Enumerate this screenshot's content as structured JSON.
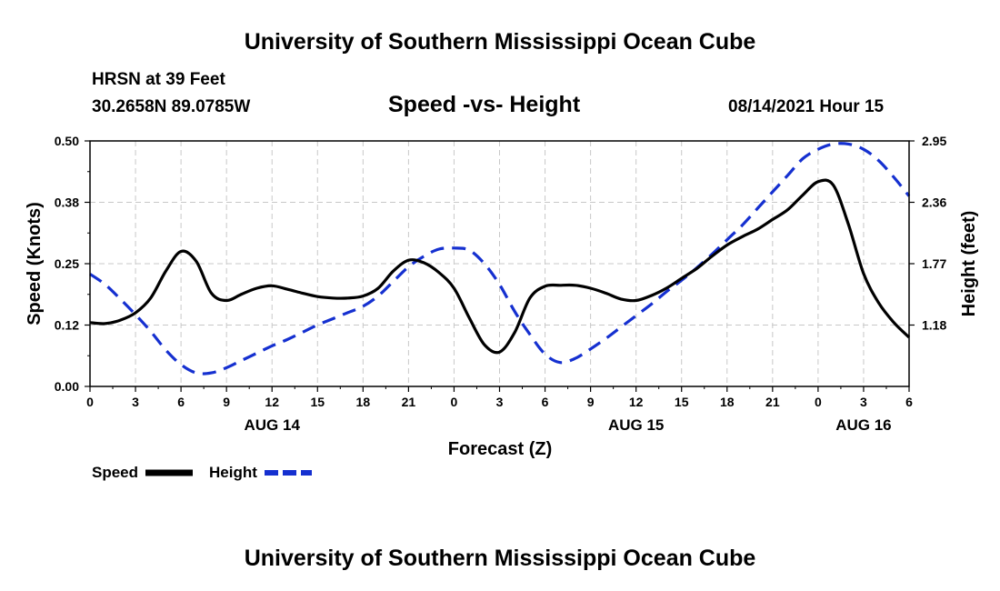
{
  "page": {
    "title_top": "University of Southern Mississippi Ocean Cube",
    "title_bottom": "University of Southern Mississippi Ocean Cube",
    "station": "HRSN at 39 Feet",
    "coords": "30.2658N  89.0785W",
    "subtitle": "Speed -vs- Height",
    "datetime": "08/14/2021 Hour 15"
  },
  "chart_data": {
    "type": "line",
    "title": "Speed -vs- Height",
    "xlabel": "Forecast (Z)",
    "ylabel_left": "Speed (Knots)",
    "ylabel_right": "Height (feet)",
    "x_range_hours": [
      0,
      54
    ],
    "x_ticks": [
      "0",
      "3",
      "6",
      "9",
      "12",
      "15",
      "18",
      "21",
      "0",
      "3",
      "6",
      "9",
      "12",
      "15",
      "18",
      "21",
      "0",
      "3",
      "6"
    ],
    "day_labels": [
      {
        "label": "AUG 14",
        "hour": 12
      },
      {
        "label": "AUG 15",
        "hour": 36
      },
      {
        "label": "AUG 16",
        "hour": 51
      }
    ],
    "y_left": {
      "ticks": [
        "0.00",
        "0.12",
        "0.25",
        "0.38",
        "0.50"
      ],
      "range": [
        0,
        0.5
      ]
    },
    "y_right": {
      "ticks": [
        "1.18",
        "1.77",
        "2.36",
        "2.95"
      ],
      "range": [
        0.59,
        2.95
      ]
    },
    "grid": true,
    "legend": [
      "Speed",
      "Height"
    ],
    "series": [
      {
        "name": "Speed",
        "axis": "left",
        "color": "#000000",
        "style": "solid",
        "x": [
          0,
          1,
          2,
          3,
          4,
          5,
          6,
          7,
          8,
          9,
          10,
          11,
          12,
          13,
          14,
          15,
          16,
          17,
          18,
          19,
          20,
          21,
          22,
          23,
          24,
          25,
          26,
          27,
          28,
          29,
          30,
          31,
          32,
          33,
          34,
          35,
          36,
          37,
          38,
          39,
          40,
          41,
          42,
          43,
          44,
          45,
          46,
          47,
          48,
          49,
          50,
          51,
          52,
          53,
          54
        ],
        "values": [
          0.13,
          0.128,
          0.135,
          0.15,
          0.18,
          0.235,
          0.275,
          0.255,
          0.19,
          0.175,
          0.188,
          0.2,
          0.205,
          0.198,
          0.19,
          0.183,
          0.18,
          0.18,
          0.184,
          0.2,
          0.235,
          0.257,
          0.252,
          0.232,
          0.2,
          0.14,
          0.085,
          0.07,
          0.11,
          0.18,
          0.204,
          0.206,
          0.206,
          0.2,
          0.19,
          0.178,
          0.175,
          0.185,
          0.2,
          0.22,
          0.24,
          0.265,
          0.288,
          0.305,
          0.32,
          0.34,
          0.36,
          0.39,
          0.417,
          0.41,
          0.33,
          0.23,
          0.17,
          0.13,
          0.1
        ]
      },
      {
        "name": "Height",
        "axis": "right",
        "color": "#1530d0",
        "style": "dashed",
        "x": [
          0,
          1,
          2,
          3,
          4,
          5,
          6,
          7,
          8,
          9,
          10,
          11,
          12,
          13,
          14,
          15,
          16,
          17,
          18,
          19,
          20,
          21,
          22,
          23,
          24,
          25,
          26,
          27,
          28,
          29,
          30,
          31,
          32,
          33,
          34,
          35,
          36,
          37,
          38,
          39,
          40,
          41,
          42,
          43,
          44,
          45,
          46,
          47,
          48,
          49,
          50,
          51,
          52,
          53,
          54
        ],
        "values": [
          1.67,
          1.57,
          1.43,
          1.28,
          1.12,
          0.94,
          0.8,
          0.72,
          0.72,
          0.77,
          0.84,
          0.91,
          0.98,
          1.04,
          1.11,
          1.18,
          1.24,
          1.3,
          1.36,
          1.46,
          1.6,
          1.74,
          1.84,
          1.91,
          1.92,
          1.9,
          1.77,
          1.57,
          1.31,
          1.09,
          0.9,
          0.82,
          0.86,
          0.95,
          1.05,
          1.16,
          1.27,
          1.38,
          1.5,
          1.61,
          1.73,
          1.86,
          2.0,
          2.14,
          2.3,
          2.46,
          2.62,
          2.78,
          2.87,
          2.92,
          2.92,
          2.87,
          2.76,
          2.6,
          2.42
        ]
      }
    ]
  }
}
